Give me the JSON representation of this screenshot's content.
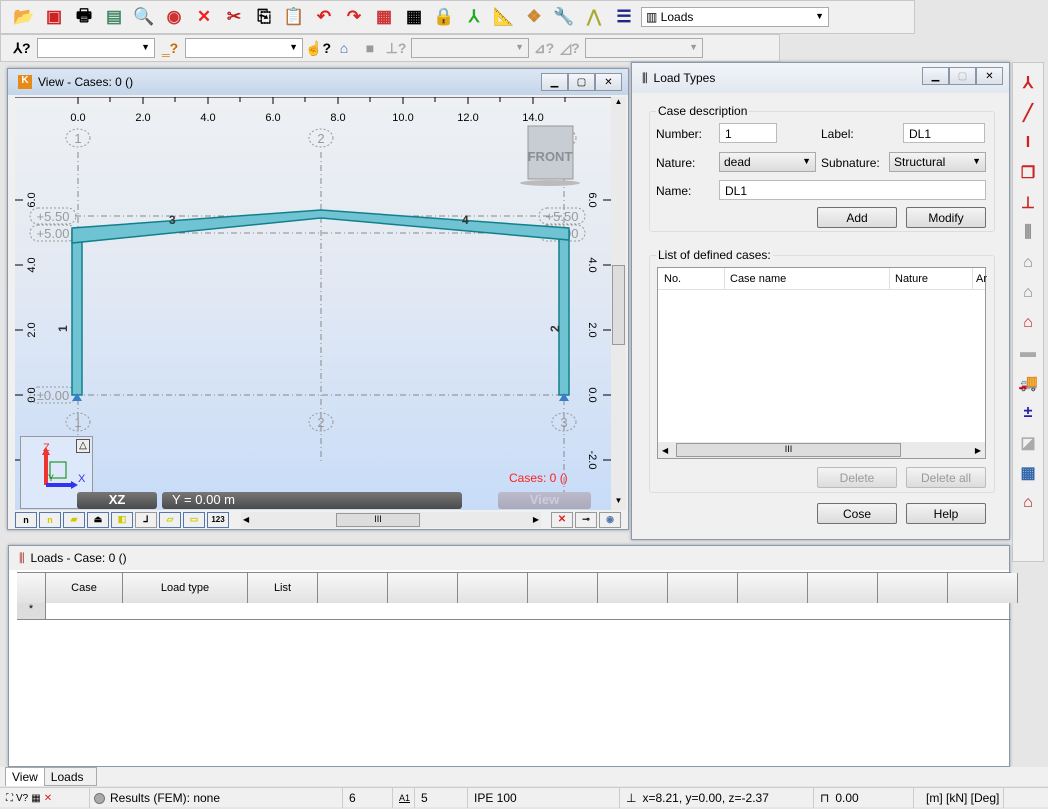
{
  "toolbar1": {
    "icons": [
      "open-icon",
      "save-icon",
      "print-icon",
      "book-icon",
      "preview-icon",
      "screenshot-icon",
      "delete-icon",
      "cut-icon",
      "copy-icon",
      "paste-icon",
      "undo-icon",
      "redo-icon",
      "calculator-icon",
      "calculator-table-icon",
      "lock-icon",
      "release-icon",
      "geometry-icon",
      "model-icon",
      "tools-icon",
      "ruler-icon",
      "layout-icon"
    ],
    "layout_combo": "Loads"
  },
  "toolbar2": {
    "node_combo": "",
    "bar_combo": "",
    "combo3": "",
    "combo4": ""
  },
  "view_window": {
    "title": "View - Cases: 0 ()",
    "x_ticks": [
      "0.0",
      "2.0",
      "4.0",
      "6.0",
      "8.0",
      "10.0",
      "12.0",
      "14.0"
    ],
    "z_ticks": [
      "6.0",
      "4.0",
      "2.0",
      "0.0",
      "-2.0"
    ],
    "axes": [
      "1",
      "2",
      "3"
    ],
    "levels": [
      "+5.50",
      "+5.00",
      "±0.00"
    ],
    "bar_labels": [
      "1",
      "2",
      "3",
      "4"
    ],
    "view_cube": "FRONT",
    "plane": "XZ",
    "coordinate": "Y = 0.00 m",
    "cases": "Cases: 0 ()",
    "view_label": "View",
    "axis_z": "Z",
    "axis_x": "X",
    "axis_y": "Y",
    "scroll_thumb": "III"
  },
  "dialog": {
    "title": "Load Types",
    "case_description": "Case description",
    "number_label": "Number:",
    "number": "1",
    "label_label": "Label:",
    "label": "DL1",
    "nature_label": "Nature:",
    "nature": "dead",
    "subnature_label": "Subnature:",
    "subnature": "Structural",
    "name_label": "Name:",
    "name": "DL1",
    "add": "Add",
    "modify": "Modify",
    "list_label": "List of defined cases:",
    "columns": [
      "No.",
      "Case name",
      "Nature",
      "Ar"
    ],
    "delete": "Delete",
    "delete_all": "Delete all",
    "close": "Cose",
    "help": "Help",
    "scroll_thumb": "III"
  },
  "loads_window": {
    "title": "Loads - Case: 0 ()",
    "columns": [
      "Case",
      "Load type",
      "List",
      "",
      "",
      "",
      "",
      "",
      "",
      "",
      "",
      "",
      ""
    ],
    "new_row_marker": "*"
  },
  "tabs": [
    "View",
    "Loads"
  ],
  "status": {
    "results": "Results (FEM): none",
    "nodes": "6",
    "bars": "5",
    "section": "IPE 100",
    "coords": "x=8.21, y=0.00, z=-2.37",
    "angle": "0.00",
    "units": "[m] [kN] [Deg]"
  },
  "colors": {
    "frame": "#6fc3d3",
    "frame_edge": "#12808a",
    "view_bg_top": "#eef0f3",
    "view_bg_bottom": "#c8dcf8",
    "cases_text": "#ff2020"
  }
}
